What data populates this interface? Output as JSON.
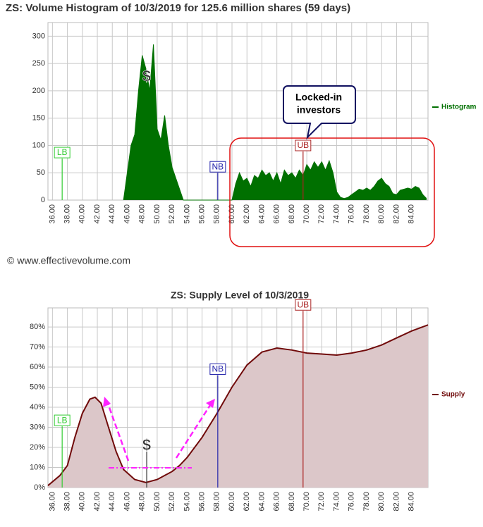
{
  "chart_data": [
    {
      "type": "area",
      "title": "ZS: Volume Histogram of 10/3/2019 for 125.6 million shares (59 days)",
      "xlim": [
        35.4,
        86.2
      ],
      "ylim": [
        0,
        325
      ],
      "xticks": [
        {
          "value": 36,
          "label": "36.00"
        },
        {
          "value": 38,
          "label": "38.00"
        },
        {
          "value": 40,
          "label": "40.00"
        },
        {
          "value": 42,
          "label": "42.00"
        },
        {
          "value": 44,
          "label": "44.00"
        },
        {
          "value": 46,
          "label": "46.00"
        },
        {
          "value": 48,
          "label": "48.00"
        },
        {
          "value": 50,
          "label": "50.00"
        },
        {
          "value": 52,
          "label": "52.00"
        },
        {
          "value": 54,
          "label": "54.00"
        },
        {
          "value": 56,
          "label": "56.00"
        },
        {
          "value": 58,
          "label": "58.00"
        },
        {
          "value": 60,
          "label": "60.00"
        },
        {
          "value": 62,
          "label": "62.00"
        },
        {
          "value": 64,
          "label": "64.00"
        },
        {
          "value": 66,
          "label": "66.00"
        },
        {
          "value": 68,
          "label": "68.00"
        },
        {
          "value": 70,
          "label": "70.00"
        },
        {
          "value": 72,
          "label": "72.00"
        },
        {
          "value": 74,
          "label": "74.00"
        },
        {
          "value": 76,
          "label": "76.00"
        },
        {
          "value": 78,
          "label": "78.00"
        },
        {
          "value": 80,
          "label": "80.00"
        },
        {
          "value": 82,
          "label": "82.00"
        },
        {
          "value": 84,
          "label": "84.00"
        }
      ],
      "yticks": [
        0,
        50,
        100,
        150,
        200,
        250,
        300
      ],
      "grid": true,
      "legend": "right",
      "series": [
        {
          "name": "Histogram",
          "color": "#007000",
          "fill_color": "#007000",
          "x": [
            45.5,
            46,
            46.5,
            47,
            47.5,
            48,
            48.5,
            49,
            49.5,
            50,
            50.5,
            51,
            51.5,
            52,
            52.5,
            53,
            53.5,
            60,
            60.5,
            61,
            61.5,
            62,
            62.5,
            63,
            63.5,
            64,
            64.5,
            65,
            65.5,
            66,
            66.5,
            67,
            67.5,
            68,
            68.5,
            69,
            69.5,
            70,
            70.5,
            71,
            71.5,
            72,
            72.5,
            73,
            73.5,
            74,
            74.5,
            75,
            75.5,
            76,
            76.5,
            77,
            77.5,
            78,
            78.5,
            79,
            79.5,
            80,
            80.5,
            81,
            81.5,
            82,
            82.5,
            83,
            83.5,
            84,
            84.5,
            85,
            85.5,
            86
          ],
          "values": [
            0,
            50,
            100,
            120,
            200,
            265,
            240,
            200,
            285,
            130,
            110,
            155,
            100,
            60,
            40,
            20,
            0,
            0,
            30,
            50,
            35,
            40,
            25,
            45,
            40,
            55,
            45,
            50,
            35,
            50,
            30,
            55,
            45,
            50,
            40,
            55,
            45,
            65,
            55,
            70,
            60,
            70,
            55,
            72,
            50,
            15,
            5,
            3,
            5,
            10,
            15,
            20,
            18,
            22,
            18,
            25,
            35,
            40,
            30,
            25,
            12,
            10,
            18,
            20,
            22,
            20,
            25,
            22,
            10,
            3
          ]
        }
      ],
      "annotations": [
        {
          "label": "LB",
          "x": 37.3,
          "y": 76,
          "color": "#33cc33",
          "line": true
        },
        {
          "label": "NB",
          "x": 58.1,
          "y": 50,
          "color": "#2222aa",
          "line": true
        },
        {
          "label": "UB",
          "x": 69.5,
          "y": 89,
          "color": "#aa2222",
          "line": true
        },
        {
          "label": "$",
          "x": 48.6,
          "y": 225,
          "color": "#333333",
          "line": false
        }
      ],
      "callout": [
        "Locked-in",
        "investors"
      ],
      "copyright": "© www.effectivevolume.com"
    },
    {
      "type": "area",
      "title": "ZS: Supply Level of 10/3/2019",
      "xlim": [
        35.4,
        86.2
      ],
      "ylim": [
        0,
        89.5
      ],
      "xticks": [
        {
          "value": 36,
          "label": "36.00"
        },
        {
          "value": 38,
          "label": "38.00"
        },
        {
          "value": 40,
          "label": "40.00"
        },
        {
          "value": 42,
          "label": "42.00"
        },
        {
          "value": 44,
          "label": "44.00"
        },
        {
          "value": 46,
          "label": "46.00"
        },
        {
          "value": 48,
          "label": "48.00"
        },
        {
          "value": 50,
          "label": "50.00"
        },
        {
          "value": 52,
          "label": "52.00"
        },
        {
          "value": 54,
          "label": "54.00"
        },
        {
          "value": 56,
          "label": "56.00"
        },
        {
          "value": 58,
          "label": "58.00"
        },
        {
          "value": 60,
          "label": "60.00"
        },
        {
          "value": 62,
          "label": "62.00"
        },
        {
          "value": 64,
          "label": "64.00"
        },
        {
          "value": 66,
          "label": "66.00"
        },
        {
          "value": 68,
          "label": "68.00"
        },
        {
          "value": 70,
          "label": "70.00"
        },
        {
          "value": 72,
          "label": "72.00"
        },
        {
          "value": 74,
          "label": "74.00"
        },
        {
          "value": 76,
          "label": "76.00"
        },
        {
          "value": 78,
          "label": "78.00"
        },
        {
          "value": 80,
          "label": "80.00"
        },
        {
          "value": 82,
          "label": "82.00"
        },
        {
          "value": 84,
          "label": "84.00"
        }
      ],
      "yticks": [
        {
          "value": 0,
          "label": "0%"
        },
        {
          "value": 10,
          "label": "10%"
        },
        {
          "value": 20,
          "label": "20%"
        },
        {
          "value": 30,
          "label": "30%"
        },
        {
          "value": 40,
          "label": "40%"
        },
        {
          "value": 50,
          "label": "50%"
        },
        {
          "value": 60,
          "label": "60%"
        },
        {
          "value": 70,
          "label": "70%"
        },
        {
          "value": 80,
          "label": "80%"
        }
      ],
      "grid": true,
      "legend": "right",
      "series": [
        {
          "name": "Supply",
          "color": "#700a0a",
          "fill_color": "#dcc7c9",
          "x": [
            35.4,
            37,
            38,
            39,
            40,
            41,
            41.7,
            42.5,
            43.5,
            44.5,
            45.5,
            47,
            48.5,
            50,
            51,
            52,
            53,
            54,
            56,
            58,
            60,
            62,
            64,
            66,
            68,
            70,
            72,
            74,
            76,
            78,
            80,
            82,
            84,
            86.2
          ],
          "values": [
            1,
            6,
            11,
            25,
            37,
            44,
            45,
            42,
            30,
            18,
            9,
            4,
            2.5,
            4,
            6,
            8,
            11,
            15,
            25,
            37,
            50,
            61,
            67.5,
            69.5,
            68.5,
            67,
            66.5,
            66,
            67,
            68.5,
            71,
            74.5,
            78,
            81
          ]
        }
      ],
      "annotations": [
        {
          "label": "LB",
          "x": 37.3,
          "y": 30.5,
          "color": "#33cc33",
          "line": true
        },
        {
          "label": "NB",
          "x": 58.1,
          "y": 56,
          "color": "#2222aa",
          "line": true
        },
        {
          "label": "UB",
          "x": 69.5,
          "y": 88,
          "color": "#aa2222",
          "line": true
        },
        {
          "label": "$",
          "x": 48.6,
          "y": 20.7,
          "color": "#333333",
          "line": true
        }
      ]
    }
  ]
}
